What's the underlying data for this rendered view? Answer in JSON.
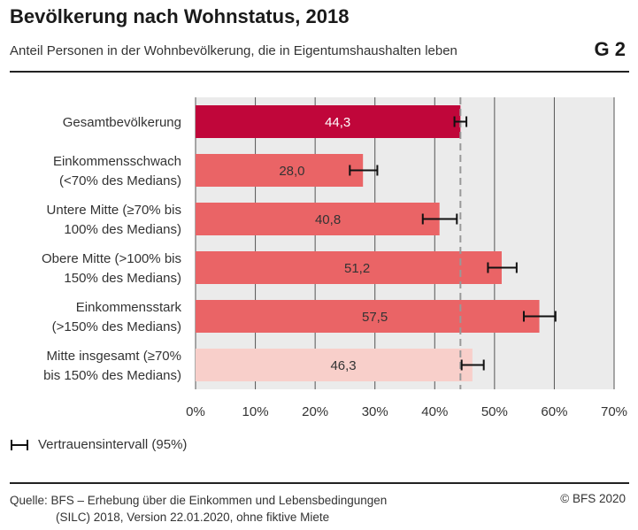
{
  "header": {
    "title": "Bevölkerung nach Wohnstatus, 2018",
    "subtitle": "Anteil Personen in der Wohnbevölkerung, die in Eigentumshaushalten leben",
    "chart_id": "G 2"
  },
  "legend": {
    "ci_label": "Vertrauensintervall (95%)"
  },
  "footer": {
    "source_line1": "Quelle: BFS – Erhebung über die Einkommen und Lebensbedingungen",
    "source_line2": "(SILC) 2018, Version 22.01.2020, ohne fiktive Miete",
    "copyright": "© BFS 2020"
  },
  "colors": {
    "highlight": "#c0063a",
    "standard": "#ea6466",
    "light": "#f8cfca",
    "plot_bg": "#ebebeb",
    "grid": "#555555",
    "reference_line": "#999999"
  },
  "chart_data": {
    "type": "bar",
    "orientation": "horizontal",
    "title": "Bevölkerung nach Wohnstatus, 2018",
    "subtitle": "Anteil Personen in der Wohnbevölkerung, die in Eigentumshaushalten leben",
    "categories": [
      [
        "Gesamtbevölkerung"
      ],
      [
        "Einkommensschwach",
        "(<70% des Medians)"
      ],
      [
        "Untere Mitte (≥70% bis",
        "100% des Medians)"
      ],
      [
        "Obere Mitte (>100% bis",
        "150% des Medians)"
      ],
      [
        "Einkommensstark",
        "(>150% des Medians)"
      ],
      [
        "Mitte insgesamt (≥70%",
        "bis 150% des Medians)"
      ]
    ],
    "values": [
      44.3,
      28.0,
      40.8,
      51.2,
      57.5,
      46.3
    ],
    "value_labels": [
      "44,3",
      "28,0",
      "40,8",
      "51,2",
      "57,5",
      "46,3"
    ],
    "ci_low": [
      43.3,
      25.8,
      38.0,
      48.9,
      54.9,
      44.5
    ],
    "ci_high": [
      45.3,
      30.4,
      43.7,
      53.7,
      60.2,
      48.2
    ],
    "bar_colors": [
      "highlight",
      "standard",
      "standard",
      "standard",
      "standard",
      "light"
    ],
    "reference_value": 44.3,
    "xlim": [
      0,
      70
    ],
    "xticks": [
      0,
      10,
      20,
      30,
      40,
      50,
      60,
      70
    ],
    "xtick_labels": [
      "0%",
      "10%",
      "20%",
      "30%",
      "40%",
      "50%",
      "60%",
      "70%"
    ],
    "xlabel": "",
    "ylabel": ""
  }
}
